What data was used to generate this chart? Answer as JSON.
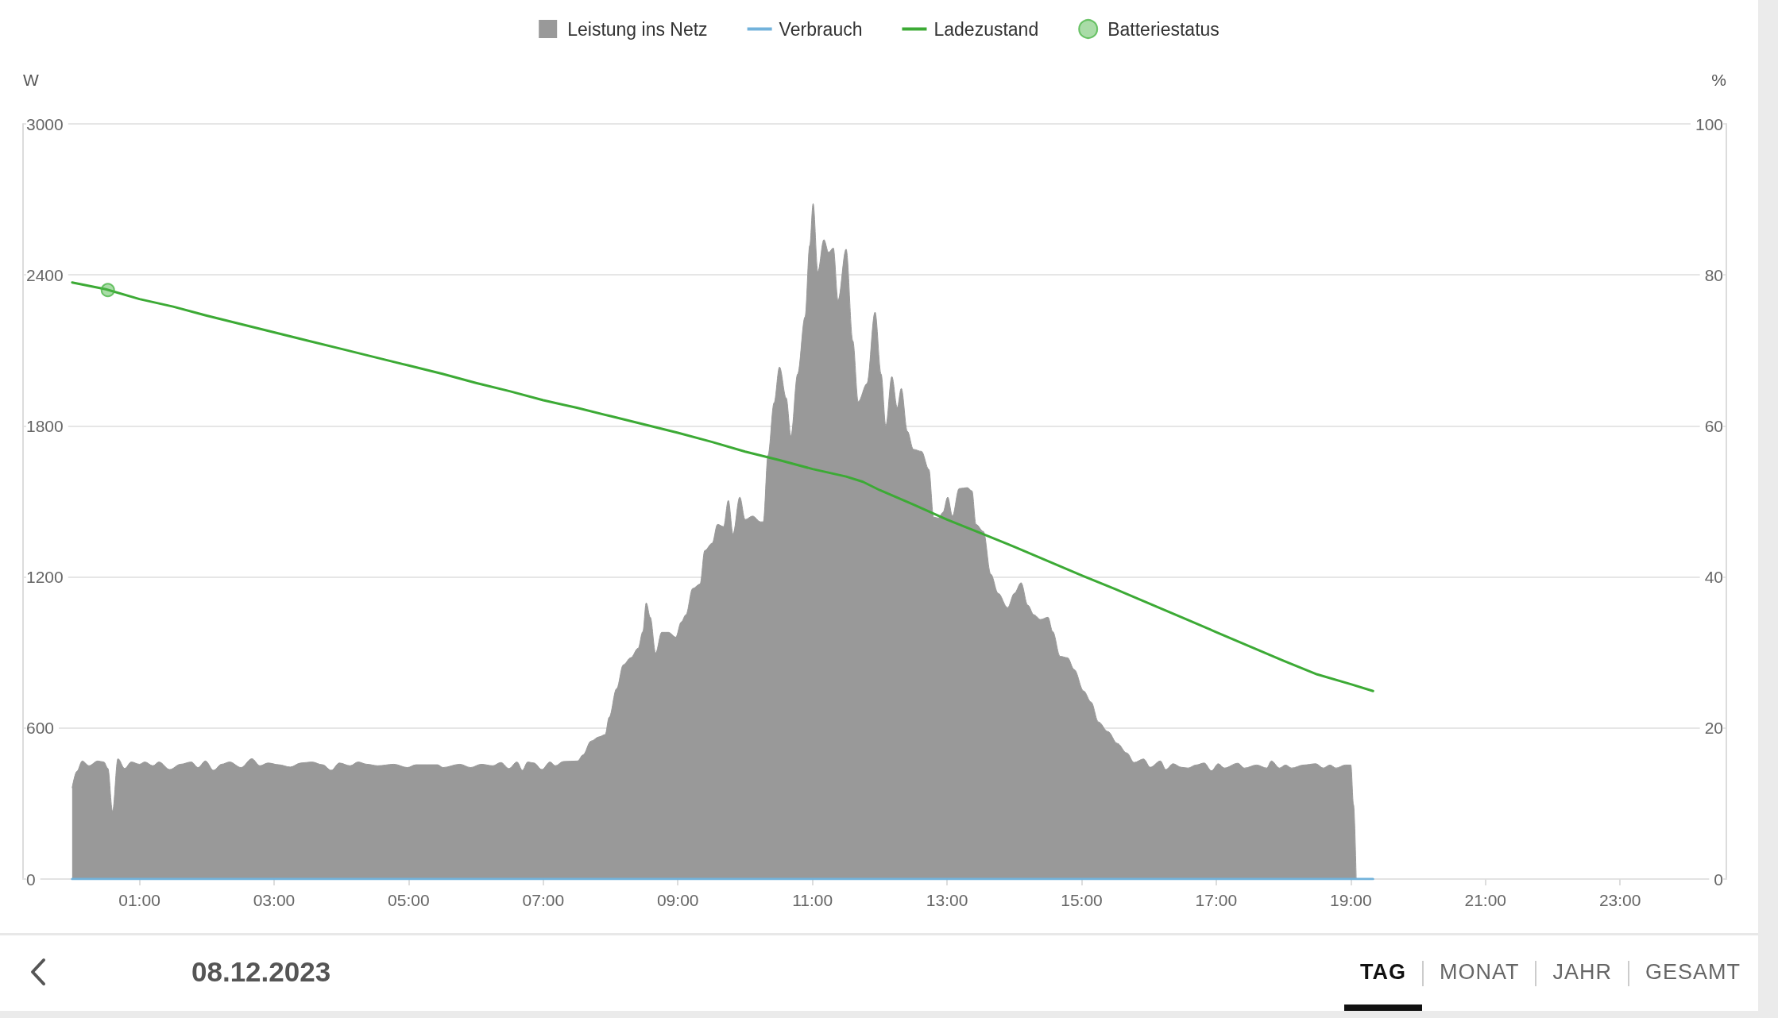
{
  "chart_data": {
    "type": "area",
    "series": [
      {
        "name": "Leistung ins Netz",
        "color": "#999999",
        "x": [
          0,
          0.07,
          0.15,
          0.25,
          0.38,
          0.47,
          0.53,
          0.6,
          0.68,
          0.78,
          0.88,
          1.0,
          1.08,
          1.2,
          1.29,
          1.45,
          1.61,
          1.77,
          1.87,
          1.98,
          2.1,
          2.22,
          2.34,
          2.51,
          2.67,
          2.79,
          2.91,
          3.07,
          3.24,
          3.4,
          3.56,
          3.72,
          3.85,
          3.97,
          4.13,
          4.25,
          4.38,
          4.54,
          4.78,
          4.98,
          5.11,
          5.43,
          5.51,
          5.76,
          5.92,
          6.08,
          6.25,
          6.37,
          6.49,
          6.61,
          6.69,
          6.77,
          6.86,
          6.98,
          7.1,
          7.18,
          7.3,
          7.51,
          7.59,
          7.71,
          7.83,
          7.92,
          7.98,
          8.09,
          8.19,
          8.3,
          8.41,
          8.48,
          8.53,
          8.59,
          8.67,
          8.76,
          8.86,
          8.97,
          9.05,
          9.12,
          9.22,
          9.33,
          9.4,
          9.51,
          9.59,
          9.68,
          9.75,
          9.82,
          9.92,
          10.0,
          10.11,
          10.23,
          10.27,
          10.34,
          10.43,
          10.51,
          10.61,
          10.68,
          10.78,
          10.89,
          10.96,
          11.01,
          11.08,
          11.17,
          11.24,
          11.31,
          11.38,
          11.5,
          11.6,
          11.68,
          11.81,
          11.93,
          12.02,
          12.09,
          12.18,
          12.26,
          12.32,
          12.41,
          12.5,
          12.62,
          12.73,
          12.8,
          12.87,
          12.94,
          13.01,
          13.08,
          13.18,
          13.3,
          13.37,
          13.43,
          13.54,
          13.65,
          13.76,
          13.9,
          14.0,
          14.1,
          14.2,
          14.29,
          14.39,
          14.5,
          14.57,
          14.68,
          14.79,
          14.89,
          15.03,
          15.14,
          15.25,
          15.39,
          15.53,
          15.67,
          15.78,
          15.92,
          16.02,
          16.17,
          16.25,
          16.36,
          16.48,
          16.58,
          16.7,
          16.82,
          16.93,
          17.03,
          17.12,
          17.32,
          17.42,
          17.6,
          17.75,
          17.82,
          17.94,
          18.03,
          18.12,
          18.3,
          18.48,
          18.59,
          18.69,
          18.78,
          18.92,
          19.0,
          19.04,
          19.08
        ],
        "values": [
          363,
          428,
          469,
          450,
          469,
          465,
          440,
          269,
          478,
          439,
          465,
          456,
          465,
          450,
          465,
          435,
          456,
          465,
          443,
          469,
          432,
          456,
          465,
          443,
          478,
          450,
          461,
          454,
          445,
          461,
          465,
          454,
          432,
          461,
          450,
          465,
          456,
          450,
          456,
          443,
          454,
          454,
          443,
          456,
          443,
          456,
          450,
          463,
          439,
          465,
          432,
          465,
          461,
          435,
          465,
          450,
          467,
          469,
          493,
          548,
          565,
          574,
          643,
          756,
          851,
          879,
          917,
          983,
          1097,
          1040,
          898,
          980,
          980,
          961,
          1021,
          1050,
          1154,
          1172,
          1305,
          1334,
          1409,
          1400,
          1504,
          1371,
          1517,
          1428,
          1442,
          1419,
          1419,
          1684,
          1892,
          2034,
          1911,
          1760,
          2006,
          2233,
          2517,
          2683,
          2413,
          2540,
          2489,
          2507,
          2299,
          2502,
          2138,
          1896,
          1968,
          2252,
          2006,
          1801,
          1996,
          1873,
          1949,
          1779,
          1707,
          1699,
          1627,
          1438,
          1434,
          1457,
          1517,
          1442,
          1551,
          1555,
          1542,
          1409,
          1381,
          1211,
          1135,
          1078,
          1135,
          1177,
          1088,
          1050,
          1031,
          1040,
          983,
          885,
          879,
          832,
          747,
          703,
          624,
          586,
          539,
          501,
          463,
          477,
          444,
          469,
          435,
          458,
          444,
          441,
          453,
          461,
          430,
          458,
          441,
          460,
          441,
          453,
          441,
          469,
          441,
          453,
          441,
          453,
          458,
          441,
          453,
          441,
          453,
          453,
          295,
          0
        ]
      },
      {
        "name": "Verbrauch",
        "type": "line",
        "color": "#72b2db",
        "x": [
          0,
          19.33
        ],
        "values": [
          0,
          0
        ]
      },
      {
        "name": "Ladezustand",
        "type": "line",
        "color": "#3caa35",
        "axis": "y2",
        "x": [
          0,
          0.5,
          1.0,
          1.5,
          2.0,
          2.5,
          3.0,
          3.5,
          4.0,
          4.5,
          5.0,
          5.5,
          6.0,
          6.5,
          7.0,
          7.5,
          8.0,
          8.5,
          9.0,
          9.5,
          10.0,
          10.5,
          11.0,
          11.5,
          11.75,
          12.0,
          12.5,
          13.0,
          13.5,
          14.0,
          14.5,
          15.0,
          15.5,
          16.0,
          16.5,
          17.0,
          17.5,
          18.0,
          18.5,
          19.0,
          19.33
        ],
        "values": [
          79.0,
          78.1,
          76.8,
          75.8,
          74.6,
          73.5,
          72.4,
          71.3,
          70.2,
          69.1,
          68.0,
          66.9,
          65.7,
          64.6,
          63.4,
          62.4,
          61.3,
          60.2,
          59.1,
          57.9,
          56.6,
          55.5,
          54.3,
          53.3,
          52.6,
          51.5,
          49.6,
          47.6,
          45.8,
          44.0,
          42.1,
          40.2,
          38.4,
          36.5,
          34.6,
          32.7,
          30.8,
          28.9,
          27.1,
          25.8,
          24.9
        ]
      },
      {
        "name": "Batteriestatus",
        "type": "scatter",
        "color": "#4cb648",
        "axis": "y2",
        "marker": "circle",
        "x": [
          0.53
        ],
        "values": [
          78.0
        ]
      }
    ],
    "ylabel": "W",
    "y2label": "%",
    "xlim": [
      -0.73,
      24.58
    ],
    "xticks": [
      {
        "value": 1,
        "label": "01:00"
      },
      {
        "value": 3,
        "label": "03:00"
      },
      {
        "value": 5,
        "label": "05:00"
      },
      {
        "value": 7,
        "label": "07:00"
      },
      {
        "value": 9,
        "label": "09:00"
      },
      {
        "value": 11,
        "label": "11:00"
      },
      {
        "value": 13,
        "label": "13:00"
      },
      {
        "value": 15,
        "label": "15:00"
      },
      {
        "value": 17,
        "label": "17:00"
      },
      {
        "value": 19,
        "label": "19:00"
      },
      {
        "value": 21,
        "label": "21:00"
      },
      {
        "value": 23,
        "label": "23:00"
      }
    ],
    "ylim": [
      0,
      3000
    ],
    "yticks": [
      0,
      600,
      1200,
      1800,
      2400,
      3000
    ],
    "y2lim": [
      0,
      100
    ],
    "y2ticks": [
      0,
      20,
      40,
      60,
      80,
      100
    ],
    "grid": "y",
    "legend": "top",
    "annotations": [
      "08.12.2023",
      "TAG",
      "MONAT",
      "JAHR",
      "GESAMT"
    ]
  }
}
